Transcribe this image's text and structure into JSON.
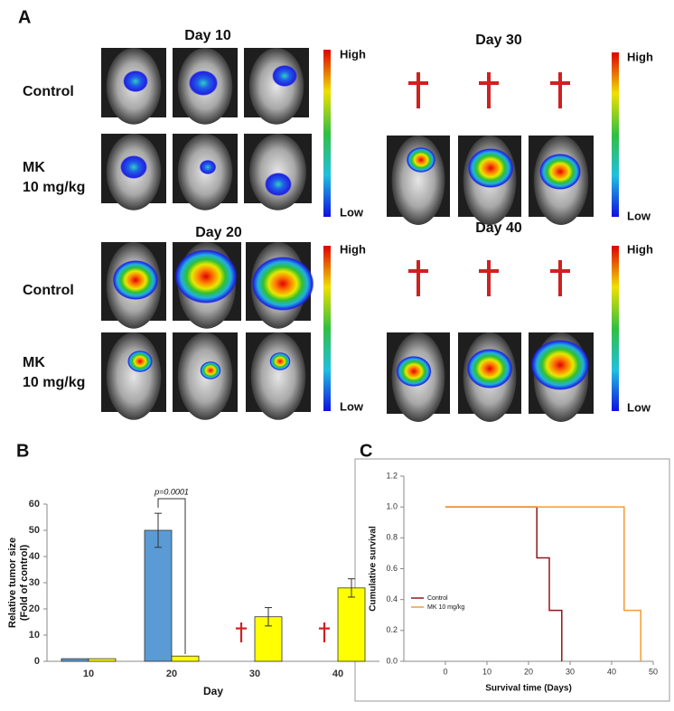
{
  "panel_a": {
    "label": "A",
    "day10": "Day 10",
    "day20": "Day 20",
    "day30": "Day 30",
    "day40": "Day 40",
    "control": "Control",
    "mk": [
      "MK",
      "10 mg/kg"
    ],
    "high": "High",
    "low": "Low"
  },
  "chart_data": [
    {
      "type": "bar",
      "panel_label": "B",
      "categories": [
        "10",
        "20",
        "30",
        "40"
      ],
      "series": [
        {
          "color": "#5b9bd5",
          "values": [
            1,
            50,
            null,
            null
          ],
          "errors": [
            null,
            6.5,
            null,
            null
          ]
        },
        {
          "color": "#ffff00",
          "values": [
            1,
            2,
            17,
            28
          ],
          "errors": [
            null,
            null,
            3.5,
            3.5
          ]
        }
      ],
      "annotation": "p=0.0001",
      "xlabel": "Day",
      "ylabel": [
        "Relative tumor size",
        "(Fold of control)"
      ],
      "ylim": [
        0,
        60
      ],
      "yticks": [
        0,
        10,
        20,
        30,
        40,
        50,
        60
      ]
    },
    {
      "type": "line",
      "panel_label": "C",
      "xlabel": "Survival time (Days)",
      "ylabel": "Cumulative survival",
      "xlim": [
        -10,
        50
      ],
      "xticks": [
        0,
        10,
        20,
        30,
        40,
        50
      ],
      "ylim": [
        0,
        1.2
      ],
      "yticks": [
        {
          "value": 0,
          "label": "0.0"
        },
        {
          "value": 0.2,
          "label": "0.2"
        },
        {
          "value": 0.4,
          "label": "0.4"
        },
        {
          "value": 0.6,
          "label": "0.6"
        },
        {
          "value": 0.8,
          "label": "0.8"
        },
        {
          "value": 1,
          "label": "1.0"
        },
        {
          "value": 1.2,
          "label": "1.2"
        }
      ],
      "legend": "lower left",
      "series": [
        {
          "name": "Control",
          "color": "#8b1a1a",
          "x": [
            0,
            22,
            22,
            25,
            25,
            28,
            28
          ],
          "y": [
            1,
            1,
            0.67,
            0.67,
            0.33,
            0.33,
            0
          ]
        },
        {
          "name": "MK 10 mg/kg",
          "color": "#f39c34",
          "x": [
            0,
            43,
            43,
            47,
            47
          ],
          "y": [
            1,
            1,
            0.33,
            0.33,
            0
          ]
        }
      ]
    }
  ]
}
